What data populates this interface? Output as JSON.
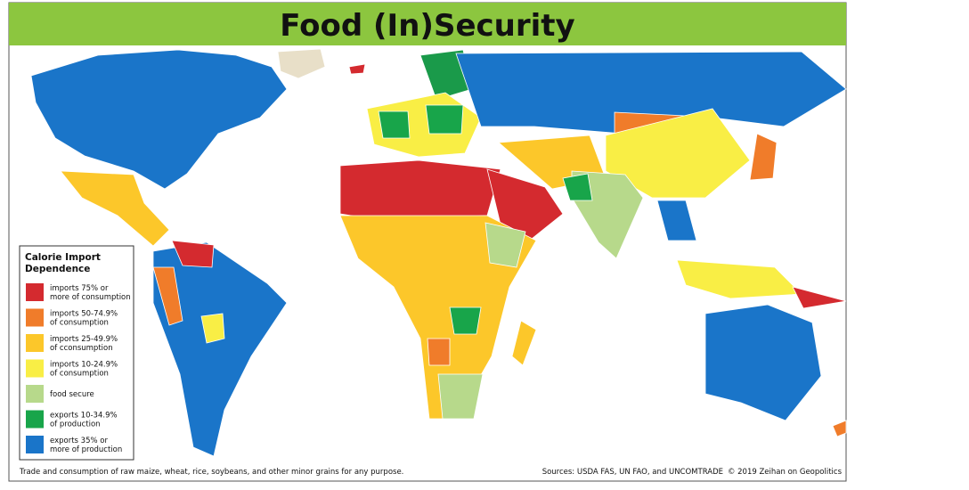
{
  "header": {
    "title": "Food (In)Security"
  },
  "legend": {
    "title": [
      "Calorie Import",
      "Dependence"
    ],
    "items": [
      {
        "color": "#d42a2f",
        "label": [
          "imports 75% or",
          "more of consumption"
        ]
      },
      {
        "color": "#f07c2a",
        "label": [
          "imports 50-74.9%",
          "of consumption"
        ]
      },
      {
        "color": "#fcc72a",
        "label": [
          "imports 25-49.9%",
          "of cconsumption"
        ]
      },
      {
        "color": "#f9ee45",
        "label": [
          "imports 10-24.9%",
          "of consumption"
        ]
      },
      {
        "color": "#b7d98b",
        "label": [
          "food secure"
        ]
      },
      {
        "color": "#18a54a",
        "label": [
          "exports 10-34.9%",
          "of production"
        ]
      },
      {
        "color": "#1a75c9",
        "label": [
          "exports 35% or",
          "more of production"
        ]
      }
    ]
  },
  "footer": {
    "note": "Trade and consumption of raw maize, wheat, rice, soybeans, and other minor grains for any purpose.",
    "sources": "Sources: USDA FAS, UN FAO, and UNCOMTRADE",
    "credit": "© 2019 Zeihan on Geopolitics"
  }
}
